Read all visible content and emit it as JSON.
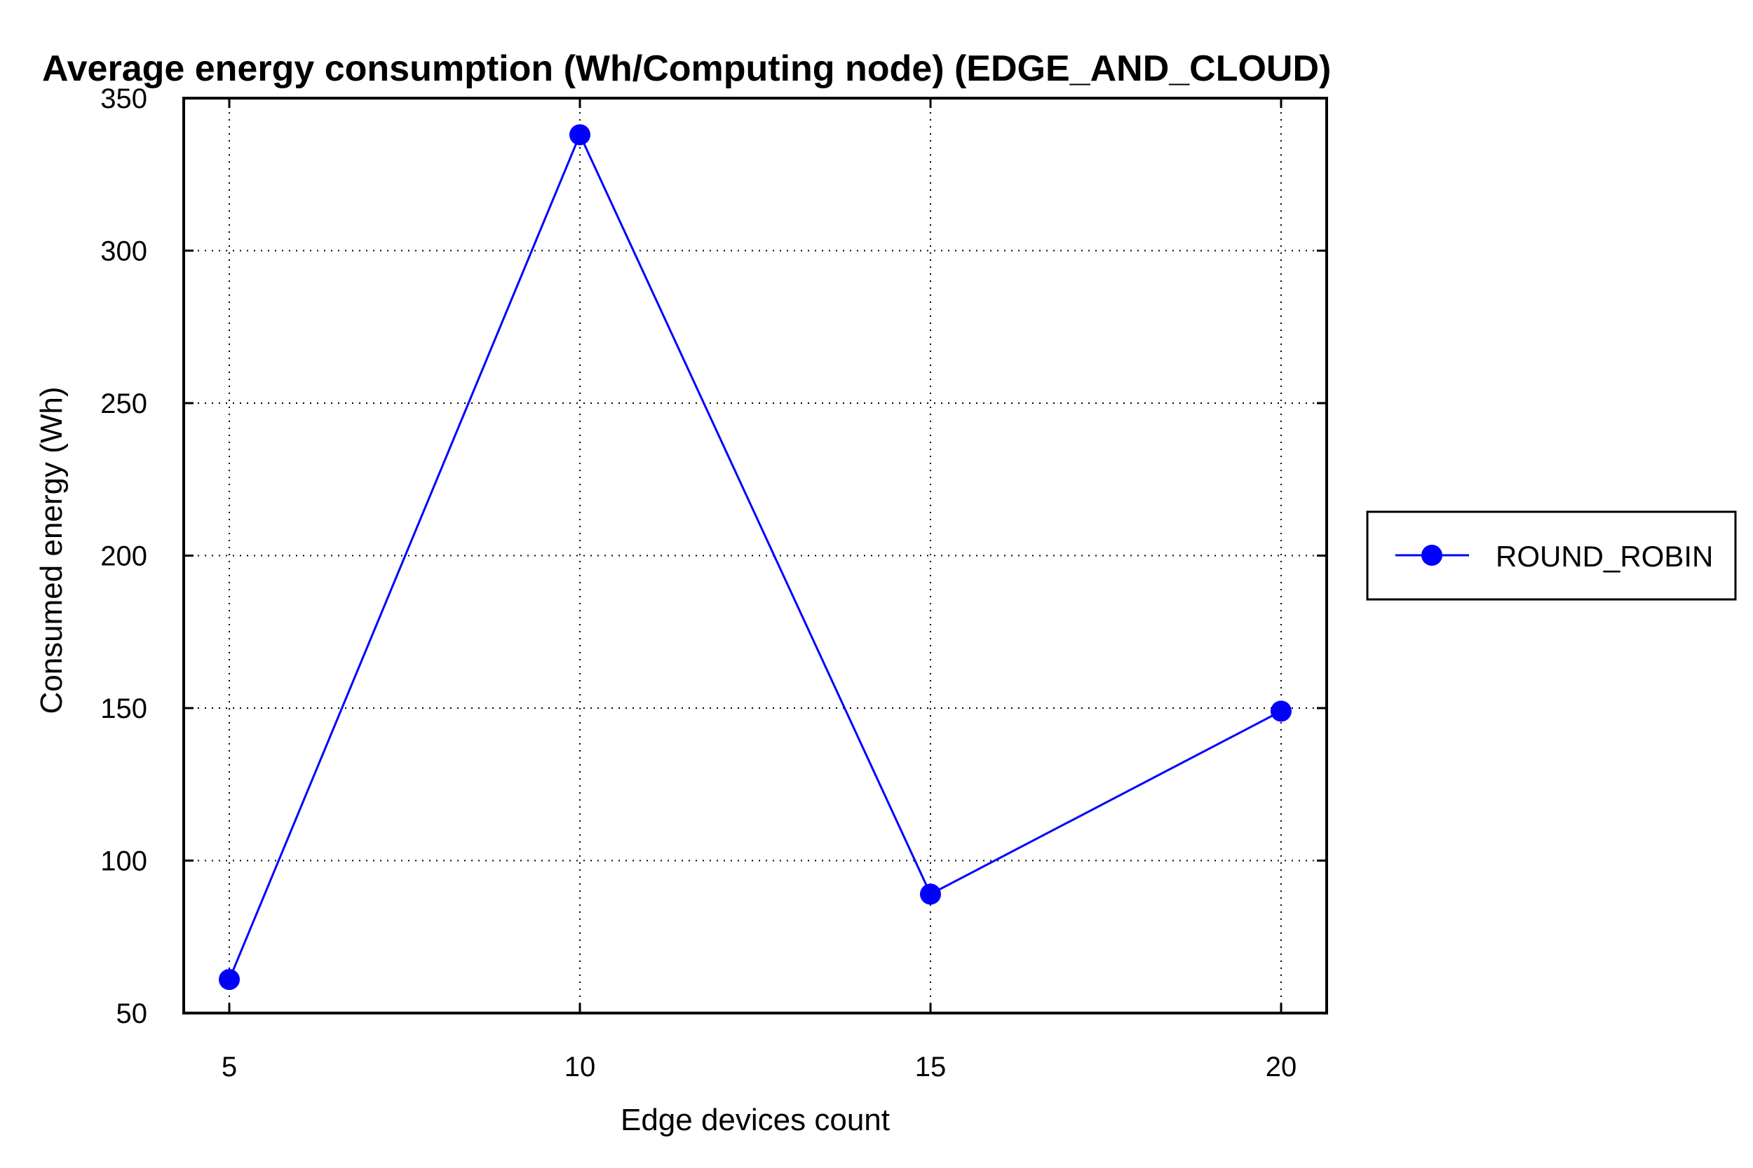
{
  "chart_data": {
    "type": "line",
    "title": "Average energy consumption (Wh/Computing node) (EDGE_AND_CLOUD)",
    "xlabel": "Edge devices count",
    "ylabel": "Consumed energy (Wh)",
    "x": [
      5,
      10,
      15,
      20
    ],
    "xticks": [
      "5",
      "10",
      "15",
      "20"
    ],
    "xlim": [
      4.35,
      20.65
    ],
    "ylim": [
      50,
      350
    ],
    "yticks": [
      50,
      100,
      150,
      200,
      250,
      300,
      350
    ],
    "grid": true,
    "legend_position": "right",
    "series": [
      {
        "name": "ROUND_ROBIN",
        "color": "#0000ff",
        "marker": "circle",
        "values": [
          61,
          338,
          89,
          149
        ]
      }
    ]
  }
}
